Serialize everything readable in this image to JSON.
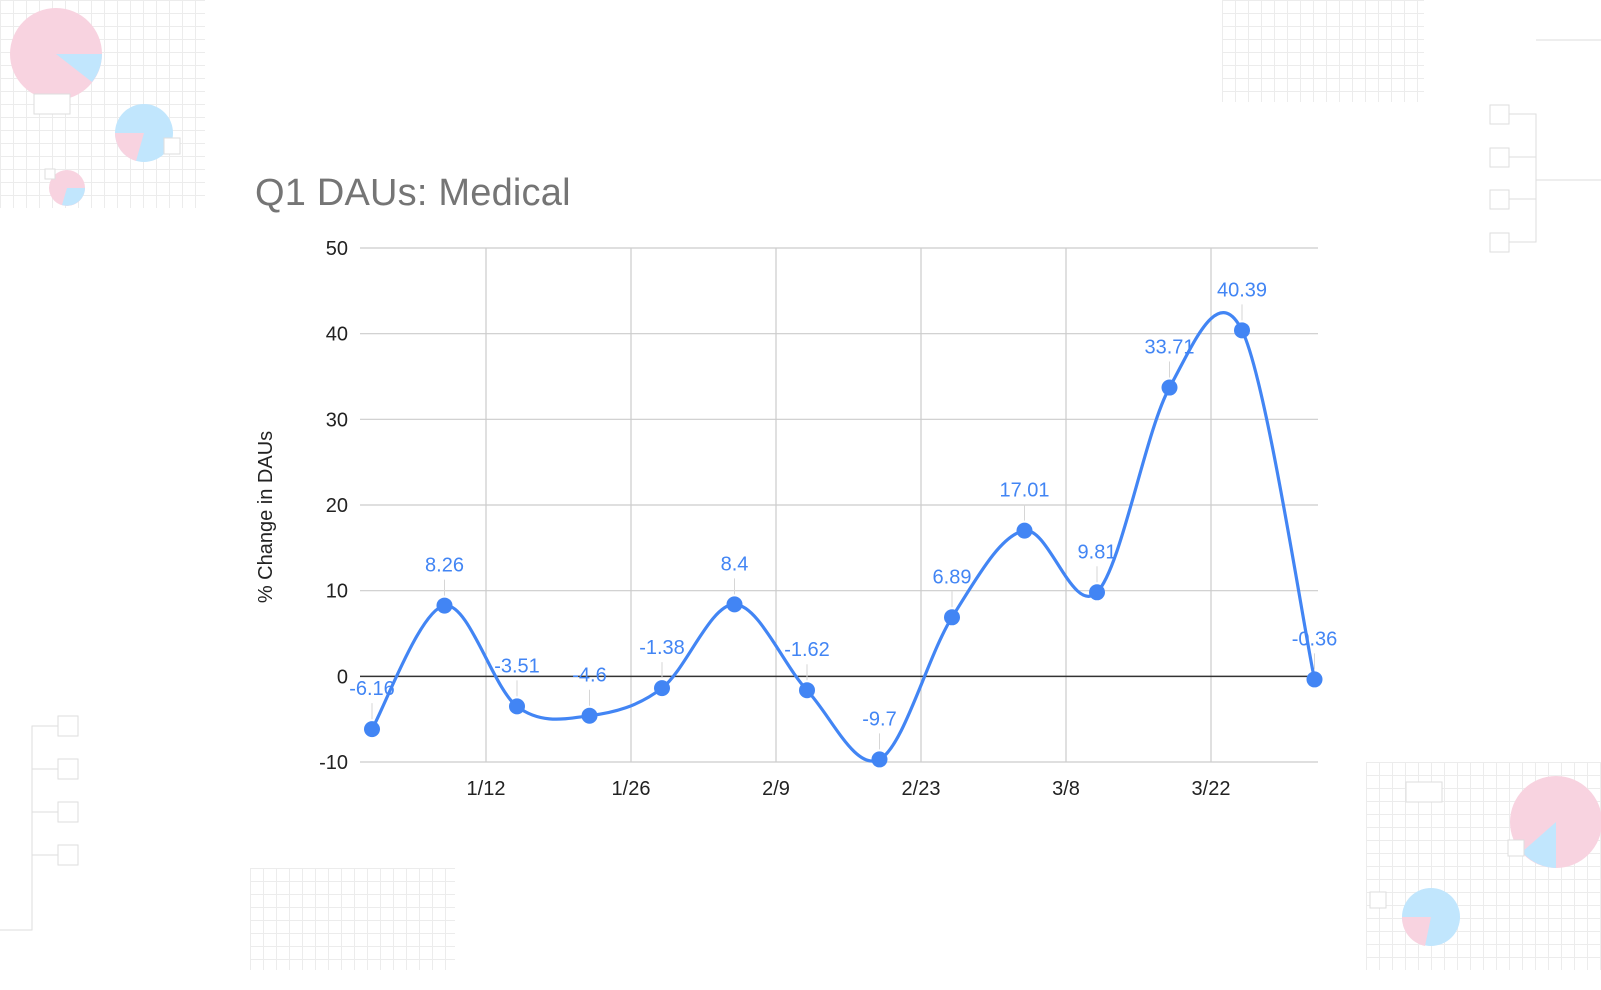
{
  "chart_data": {
    "type": "line",
    "title": "Q1 DAUs: Medical",
    "ylabel": "% Change in DAUs",
    "xlabel": "",
    "ylim": [
      -10,
      50
    ],
    "yticks": [
      -10,
      0,
      10,
      20,
      30,
      40,
      50
    ],
    "x_tick_labels": [
      "1/12",
      "1/26",
      "2/9",
      "2/23",
      "3/8",
      "3/22"
    ],
    "grid": true,
    "smooth": true,
    "series": [
      {
        "name": "",
        "color": "#4285f4",
        "points": [
          {
            "x": "1/1",
            "y": -6.16,
            "label": "-6.16"
          },
          {
            "x": "1/8",
            "y": 8.26,
            "label": "8.26"
          },
          {
            "x": "1/15",
            "y": -3.51,
            "label": "-3.51"
          },
          {
            "x": "1/22",
            "y": -4.6,
            "label": "-4.6"
          },
          {
            "x": "1/29",
            "y": -1.38,
            "label": "-1.38"
          },
          {
            "x": "2/5",
            "y": 8.4,
            "label": "8.4"
          },
          {
            "x": "2/12",
            "y": -1.62,
            "label": "-1.62"
          },
          {
            "x": "2/19",
            "y": -9.7,
            "label": "-9.7"
          },
          {
            "x": "2/26",
            "y": 6.89,
            "label": "6.89"
          },
          {
            "x": "3/5",
            "y": 17.01,
            "label": "17.01"
          },
          {
            "x": "3/12",
            "y": 9.81,
            "label": "9.81"
          },
          {
            "x": "3/19",
            "y": 33.71,
            "label": "33.71"
          },
          {
            "x": "3/26",
            "y": 40.39,
            "label": "40.39"
          },
          {
            "x": "4/2",
            "y": -0.36,
            "label": "-0.36"
          }
        ]
      }
    ]
  }
}
